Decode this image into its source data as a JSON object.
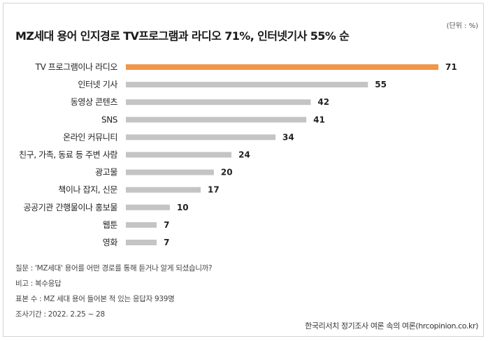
{
  "title": "MZ세대 용어 인지경로 TV프로그램과 라디오 71%, 인터넷기사 55% 순",
  "unit_note": "(단위 : %)",
  "notes": {
    "question": "질문 : 'MZ세대' 용어를 어떤 경로를 통해 듣거나 알게 되셨습니까?",
    "remark": "비고 : 복수응답",
    "sample": "표본 수 : MZ 세대 용어 들어본 적 있는 응답자 939명",
    "period": "조사기간 : 2022. 2.25 ~ 28"
  },
  "source": "한국리서치 정기조사 여론 속의 여론(hrcopinion.co.kr)",
  "colors": {
    "highlight": "#f0974a",
    "bar": "#c4c4c4"
  },
  "chart_data": {
    "type": "bar",
    "orientation": "horizontal",
    "title": "MZ세대 용어 인지경로 TV프로그램과 라디오 71%, 인터넷기사 55% 순",
    "xlabel": "",
    "ylabel": "",
    "unit": "%",
    "xlim": [
      0,
      71
    ],
    "grid": false,
    "categories": [
      "TV 프로그램이나 라디오",
      "인터넷 기사",
      "동영상 콘텐츠",
      "SNS",
      "온라인 커뮤니티",
      "친구, 가족, 동료 등 주변 사람",
      "광고물",
      "책이나 잡지, 신문",
      "공공기관 간행물이나 홍보물",
      "웹툰",
      "영화"
    ],
    "values": [
      71,
      55,
      42,
      41,
      34,
      24,
      20,
      17,
      10,
      7,
      7
    ],
    "highlight_index": 0
  }
}
